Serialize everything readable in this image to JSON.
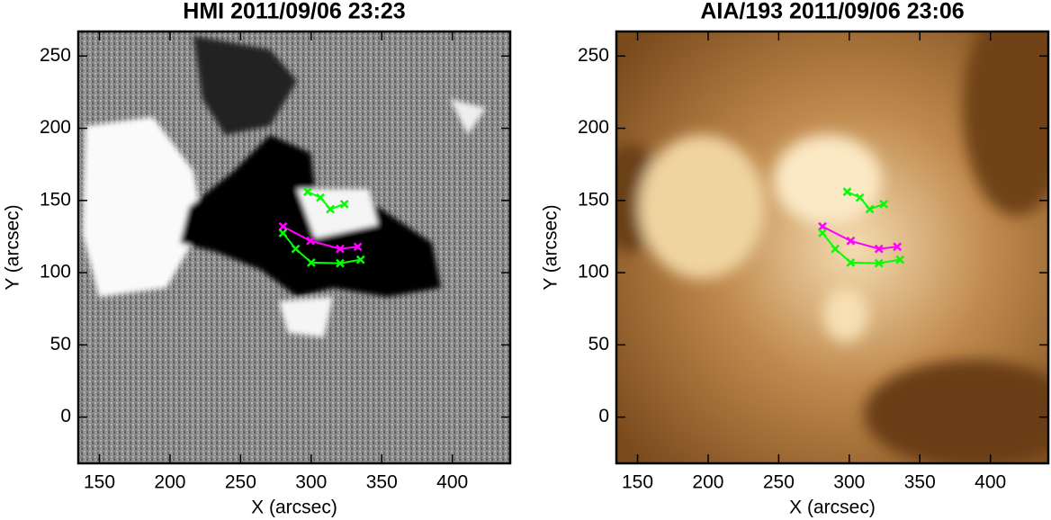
{
  "chart_data": [
    {
      "type": "line",
      "title": "HMI 2011/09/06 23:23",
      "x_label": "X (arcsec)",
      "y_label": "Y (arcsec)",
      "xlim": [
        135,
        441
      ],
      "ylim": [
        -32,
        267
      ],
      "xticks": [
        150,
        200,
        250,
        300,
        350,
        400
      ],
      "yticks": [
        0,
        50,
        100,
        150,
        200,
        250
      ],
      "series": [
        {
          "color": "#ff00ff",
          "x": [
            280,
            299.5,
            320.5,
            333
          ],
          "values": [
            132,
            122,
            116.5,
            118
          ]
        },
        {
          "color": "#00ff00",
          "x": [
            280,
            289,
            300,
            320.5,
            335
          ],
          "values": [
            127.5,
            116.5,
            107,
            106.5,
            109
          ]
        },
        {
          "color": "#00ff00",
          "x": [
            297.5,
            306.5,
            313.5,
            323.5
          ],
          "values": [
            156,
            152,
            144,
            147.5
          ]
        }
      ]
    },
    {
      "type": "line",
      "title": "AIA/193 2011/09/06 23:06",
      "x_label": "X (arcsec)",
      "y_label": "Y (arcsec)",
      "xlim": [
        135,
        441
      ],
      "ylim": [
        -32,
        267
      ],
      "xticks": [
        150,
        200,
        250,
        300,
        350,
        400
      ],
      "yticks": [
        0,
        50,
        100,
        150,
        200,
        250
      ],
      "series": [
        {
          "color": "#ff00ff",
          "x": [
            281,
            301,
            321,
            334
          ],
          "values": [
            132,
            122,
            116.5,
            118
          ]
        },
        {
          "color": "#00ff00",
          "x": [
            281,
            290,
            301,
            321,
            336
          ],
          "values": [
            127.5,
            116.5,
            107,
            106.5,
            109
          ]
        },
        {
          "color": "#00ff00",
          "x": [
            298.5,
            307.5,
            314.5,
            324.5
          ],
          "values": [
            156,
            152,
            144,
            147.5
          ]
        }
      ]
    }
  ]
}
